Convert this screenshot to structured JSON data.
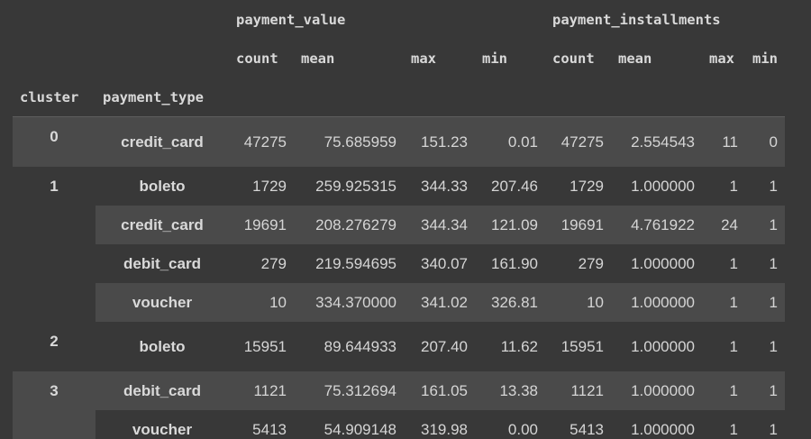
{
  "table": {
    "group_headers": {
      "payment_value": "payment_value",
      "payment_installments": "payment_installments"
    },
    "sub_headers": [
      "count",
      "mean",
      "max",
      "min",
      "count",
      "mean",
      "max",
      "min"
    ],
    "index_names": {
      "cluster": "cluster",
      "payment_type": "payment_type"
    },
    "rows": [
      {
        "cluster": "0",
        "payment_type": "credit_card",
        "values": [
          "47275",
          "75.685959",
          "151.23",
          "0.01",
          "47275",
          "2.554543",
          "11",
          "0"
        ]
      },
      {
        "cluster": "1",
        "payment_type": "boleto",
        "values": [
          "1729",
          "259.925315",
          "344.33",
          "207.46",
          "1729",
          "1.000000",
          "1",
          "1"
        ]
      },
      {
        "cluster": "",
        "payment_type": "credit_card",
        "values": [
          "19691",
          "208.276279",
          "344.34",
          "121.09",
          "19691",
          "4.761922",
          "24",
          "1"
        ]
      },
      {
        "cluster": "",
        "payment_type": "debit_card",
        "values": [
          "279",
          "219.594695",
          "340.07",
          "161.90",
          "279",
          "1.000000",
          "1",
          "1"
        ]
      },
      {
        "cluster": "",
        "payment_type": "voucher",
        "values": [
          "10",
          "334.370000",
          "341.02",
          "326.81",
          "10",
          "1.000000",
          "1",
          "1"
        ]
      },
      {
        "cluster": "2",
        "payment_type": "boleto",
        "values": [
          "15951",
          "89.644933",
          "207.40",
          "11.62",
          "15951",
          "1.000000",
          "1",
          "1"
        ]
      },
      {
        "cluster": "3",
        "payment_type": "debit_card",
        "values": [
          "1121",
          "75.312694",
          "161.05",
          "13.38",
          "1121",
          "1.000000",
          "1",
          "1"
        ]
      },
      {
        "cluster": "",
        "payment_type": "voucher",
        "values": [
          "5413",
          "54.909148",
          "319.98",
          "0.00",
          "5413",
          "1.000000",
          "1",
          "1"
        ]
      }
    ]
  }
}
